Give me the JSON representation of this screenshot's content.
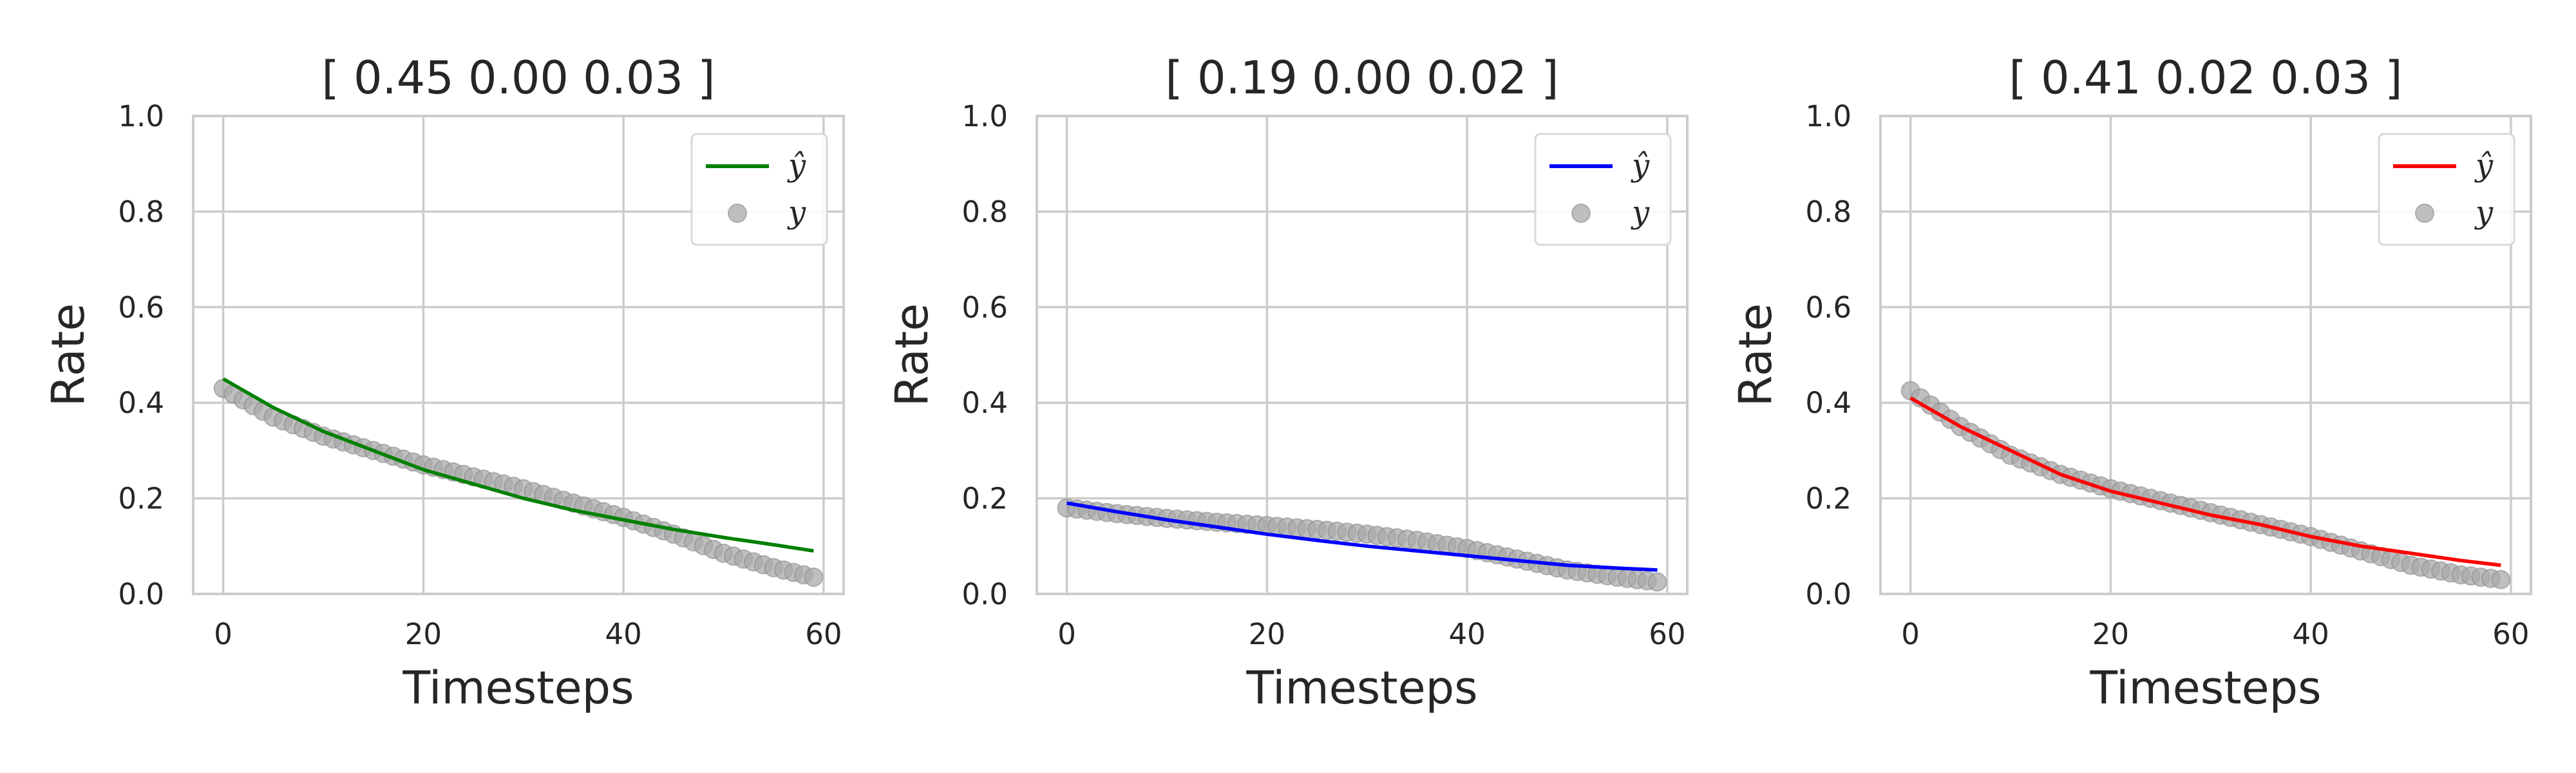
{
  "chart_data": [
    {
      "type": "line",
      "title": "[ 0.45 0.00 0.03 ]",
      "xlabel": "Timesteps",
      "ylabel": "Rate",
      "xlim": [
        -3,
        62
      ],
      "ylim": [
        0,
        1
      ],
      "xticks": [
        0,
        20,
        40,
        60
      ],
      "yticks": [
        0.0,
        0.2,
        0.4,
        0.6,
        0.8,
        1.0
      ],
      "grid": true,
      "legend_position": "top-right",
      "series": [
        {
          "name": "ŷ",
          "kind": "line",
          "color": "#008000",
          "x": [
            0,
            5,
            10,
            15,
            20,
            25,
            30,
            35,
            40,
            45,
            50,
            55,
            59
          ],
          "values": [
            0.45,
            0.39,
            0.34,
            0.3,
            0.26,
            0.23,
            0.2,
            0.175,
            0.155,
            0.135,
            0.118,
            0.103,
            0.09
          ]
        },
        {
          "name": "y",
          "kind": "scatter",
          "color": "#a9a9a9",
          "x": [
            0,
            5,
            10,
            15,
            20,
            25,
            30,
            35,
            40,
            45,
            50,
            55,
            59
          ],
          "values": [
            0.43,
            0.37,
            0.33,
            0.3,
            0.27,
            0.245,
            0.22,
            0.19,
            0.16,
            0.125,
            0.085,
            0.055,
            0.035
          ]
        }
      ]
    },
    {
      "type": "line",
      "title": "[ 0.19 0.00 0.02 ]",
      "xlabel": "Timesteps",
      "ylabel": "Rate",
      "xlim": [
        -3,
        62
      ],
      "ylim": [
        0,
        1
      ],
      "xticks": [
        0,
        20,
        40,
        60
      ],
      "yticks": [
        0.0,
        0.2,
        0.4,
        0.6,
        0.8,
        1.0
      ],
      "grid": true,
      "legend_position": "top-right",
      "series": [
        {
          "name": "ŷ",
          "kind": "line",
          "color": "#0000ff",
          "x": [
            0,
            5,
            10,
            15,
            20,
            25,
            30,
            35,
            40,
            45,
            50,
            55,
            59
          ],
          "values": [
            0.19,
            0.172,
            0.155,
            0.14,
            0.125,
            0.112,
            0.1,
            0.09,
            0.08,
            0.07,
            0.06,
            0.054,
            0.05
          ]
        },
        {
          "name": "y",
          "kind": "scatter",
          "color": "#a9a9a9",
          "x": [
            0,
            5,
            10,
            15,
            20,
            25,
            30,
            35,
            40,
            45,
            50,
            55,
            59
          ],
          "values": [
            0.18,
            0.168,
            0.158,
            0.15,
            0.143,
            0.135,
            0.125,
            0.112,
            0.095,
            0.073,
            0.05,
            0.035,
            0.025
          ]
        }
      ]
    },
    {
      "type": "line",
      "title": "[ 0.41 0.02 0.03 ]",
      "xlabel": "Timesteps",
      "ylabel": "Rate",
      "xlim": [
        -3,
        62
      ],
      "ylim": [
        0,
        1
      ],
      "xticks": [
        0,
        20,
        40,
        60
      ],
      "yticks": [
        0.0,
        0.2,
        0.4,
        0.6,
        0.8,
        1.0
      ],
      "grid": true,
      "legend_position": "top-right",
      "series": [
        {
          "name": "ŷ",
          "kind": "line",
          "color": "#ff0000",
          "x": [
            0,
            5,
            10,
            15,
            20,
            25,
            30,
            35,
            40,
            45,
            50,
            55,
            59
          ],
          "values": [
            0.41,
            0.35,
            0.3,
            0.25,
            0.215,
            0.19,
            0.165,
            0.145,
            0.12,
            0.1,
            0.085,
            0.07,
            0.06
          ]
        },
        {
          "name": "y",
          "kind": "scatter",
          "color": "#a9a9a9",
          "x": [
            0,
            5,
            10,
            15,
            20,
            25,
            30,
            35,
            40,
            45,
            50,
            55,
            59
          ],
          "values": [
            0.425,
            0.35,
            0.29,
            0.25,
            0.22,
            0.195,
            0.17,
            0.145,
            0.12,
            0.09,
            0.06,
            0.04,
            0.03
          ]
        }
      ]
    }
  ]
}
